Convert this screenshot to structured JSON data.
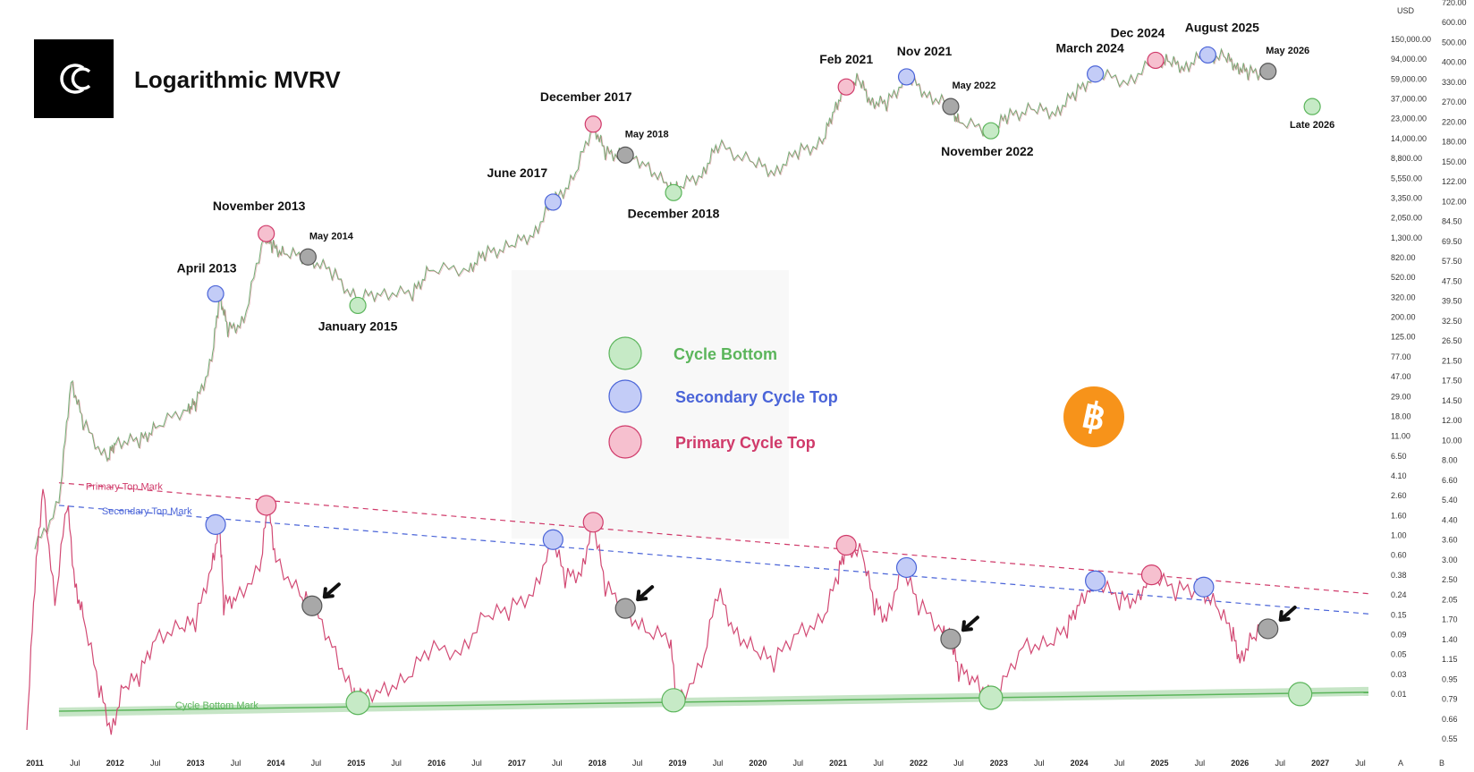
{
  "title": "Logarithmic MVRV",
  "logo_icon": "chartwise-logo-icon",
  "bitcoin_icon": "bitcoin-icon",
  "legend": [
    {
      "label": "Cycle Bottom",
      "color": "#5bb55b",
      "fill": "#c6eac6"
    },
    {
      "label": "Secondary Cycle Top",
      "color": "#4a64d8",
      "fill": "#c3ccf7"
    },
    {
      "label": "Primary Cycle Top",
      "color": "#d03a6a",
      "fill": "#f6c0cf"
    }
  ],
  "chart_data": {
    "type": "line",
    "x_axis": {
      "ticks": [
        "2011",
        "Jul",
        "2012",
        "Jul",
        "2013",
        "Jul",
        "2014",
        "Jul",
        "2015",
        "Jul",
        "2016",
        "Jul",
        "2017",
        "Jul",
        "2018",
        "Jul",
        "2019",
        "Jul",
        "2020",
        "Jul",
        "2021",
        "Jul",
        "2022",
        "Jul",
        "2023",
        "Jul",
        "2024",
        "Jul",
        "2025",
        "Jul",
        "2026",
        "Jul",
        "2027",
        "Jul"
      ],
      "range": [
        2010.9,
        2027.6
      ]
    },
    "price_axis": {
      "unit": "USD",
      "scale": "log",
      "ticks": [
        "150,000.00",
        "94,000.00",
        "59,000.00",
        "37,000.00",
        "23,000.00",
        "14,000.00",
        "8,800.00",
        "5,550.00",
        "3,350.00",
        "2,050.00",
        "1,300.00",
        "820.00",
        "520.00",
        "320.00",
        "200.00",
        "125.00",
        "77.00",
        "47.00",
        "29.00",
        "18.00",
        "11.00",
        "6.50",
        "4.10",
        "2.60",
        "1.60",
        "1.00",
        "0.60",
        "0.38",
        "0.24",
        "0.15",
        "0.09",
        "0.05",
        "0.03",
        "0.01"
      ]
    },
    "mvrv_axis": {
      "scale": "log",
      "ticks": [
        "720.00",
        "600.00",
        "500.00",
        "400.00",
        "330.00",
        "270.00",
        "220.00",
        "180.00",
        "150.00",
        "122.00",
        "102.00",
        "84.50",
        "69.50",
        "57.50",
        "47.50",
        "39.50",
        "32.50",
        "26.50",
        "21.50",
        "17.50",
        "14.50",
        "12.00",
        "10.00",
        "8.00",
        "6.60",
        "5.40",
        "4.40",
        "3.60",
        "3.00",
        "2.50",
        "2.05",
        "1.70",
        "1.40",
        "1.15",
        "0.95",
        "0.79",
        "0.66",
        "0.55"
      ]
    },
    "price_series": [
      [
        2011.0,
        0.3
      ],
      [
        2011.3,
        1.0
      ],
      [
        2011.45,
        25
      ],
      [
        2011.6,
        8
      ],
      [
        2011.9,
        3
      ],
      [
        2012.0,
        5
      ],
      [
        2012.3,
        5
      ],
      [
        2012.5,
        7
      ],
      [
        2012.9,
        12
      ],
      [
        2013.0,
        13
      ],
      [
        2013.2,
        40
      ],
      [
        2013.3,
        230
      ],
      [
        2013.4,
        90
      ],
      [
        2013.6,
        110
      ],
      [
        2013.85,
        1100
      ],
      [
        2013.95,
        800
      ],
      [
        2014.1,
        650
      ],
      [
        2014.4,
        600
      ],
      [
        2014.7,
        400
      ],
      [
        2015.0,
        200
      ],
      [
        2015.3,
        240
      ],
      [
        2015.7,
        230
      ],
      [
        2015.9,
        420
      ],
      [
        2016.4,
        450
      ],
      [
        2016.6,
        650
      ],
      [
        2016.9,
        780
      ],
      [
        2017.2,
        1100
      ],
      [
        2017.45,
        2500
      ],
      [
        2017.7,
        4500
      ],
      [
        2017.95,
        19000
      ],
      [
        2018.1,
        9000
      ],
      [
        2018.3,
        8500
      ],
      [
        2018.6,
        7000
      ],
      [
        2018.9,
        3500
      ],
      [
        2019.0,
        3600
      ],
      [
        2019.3,
        5200
      ],
      [
        2019.5,
        11000
      ],
      [
        2019.9,
        7300
      ],
      [
        2020.2,
        5500
      ],
      [
        2020.5,
        9300
      ],
      [
        2020.8,
        11500
      ],
      [
        2020.95,
        29000
      ],
      [
        2021.1,
        50000
      ],
      [
        2021.25,
        61000
      ],
      [
        2021.4,
        35000
      ],
      [
        2021.6,
        32000
      ],
      [
        2021.85,
        65000
      ],
      [
        2022.1,
        42000
      ],
      [
        2022.4,
        30000
      ],
      [
        2022.5,
        20000
      ],
      [
        2022.9,
        16000
      ],
      [
        2023.1,
        23000
      ],
      [
        2023.4,
        28000
      ],
      [
        2023.7,
        26000
      ],
      [
        2023.95,
        42000
      ],
      [
        2024.2,
        70000
      ],
      [
        2024.6,
        58000
      ],
      [
        2024.95,
        100000
      ],
      [
        2025.1,
        98000
      ],
      [
        2025.3,
        84000
      ],
      [
        2025.55,
        115000
      ],
      [
        2025.8,
        110000
      ],
      [
        2025.95,
        88000
      ],
      [
        2026.1,
        72000
      ],
      [
        2026.35,
        75000
      ]
    ],
    "mvrv_series": [
      [
        2010.9,
        0.6
      ],
      [
        2011.0,
        2.5
      ],
      [
        2011.1,
        6.5
      ],
      [
        2011.25,
        2.0
      ],
      [
        2011.4,
        5.5
      ],
      [
        2011.5,
        2.5
      ],
      [
        2011.6,
        1.8
      ],
      [
        2011.8,
        0.9
      ],
      [
        2011.95,
        0.6
      ],
      [
        2012.1,
        0.9
      ],
      [
        2012.3,
        1.0
      ],
      [
        2012.5,
        1.5
      ],
      [
        2012.8,
        1.6
      ],
      [
        2013.0,
        1.7
      ],
      [
        2013.2,
        3.0
      ],
      [
        2013.3,
        4.4
      ],
      [
        2013.35,
        2.0
      ],
      [
        2013.5,
        2.2
      ],
      [
        2013.8,
        2.8
      ],
      [
        2013.9,
        5.3
      ],
      [
        2014.0,
        3.2
      ],
      [
        2014.3,
        2.2
      ],
      [
        2014.45,
        2.0
      ],
      [
        2014.7,
        1.4
      ],
      [
        2014.95,
        0.85
      ],
      [
        2015.0,
        0.8
      ],
      [
        2015.3,
        0.9
      ],
      [
        2015.6,
        0.95
      ],
      [
        2015.9,
        1.3
      ],
      [
        2016.3,
        1.3
      ],
      [
        2016.6,
        1.8
      ],
      [
        2016.9,
        1.9
      ],
      [
        2017.2,
        2.3
      ],
      [
        2017.45,
        3.8
      ],
      [
        2017.6,
        2.6
      ],
      [
        2017.8,
        2.8
      ],
      [
        2017.95,
        4.5
      ],
      [
        2018.1,
        2.4
      ],
      [
        2018.35,
        1.95
      ],
      [
        2018.6,
        1.55
      ],
      [
        2018.9,
        1.45
      ],
      [
        2019.0,
        0.8
      ],
      [
        2019.3,
        1.1
      ],
      [
        2019.5,
        2.3
      ],
      [
        2019.7,
        1.6
      ],
      [
        2019.95,
        1.3
      ],
      [
        2020.2,
        1.15
      ],
      [
        2020.5,
        1.6
      ],
      [
        2020.8,
        1.7
      ],
      [
        2021.0,
        2.7
      ],
      [
        2021.1,
        3.6
      ],
      [
        2021.3,
        3.3
      ],
      [
        2021.45,
        2.0
      ],
      [
        2021.6,
        1.8
      ],
      [
        2021.8,
        2.9
      ],
      [
        2022.0,
        2.0
      ],
      [
        2022.3,
        1.6
      ],
      [
        2022.4,
        1.45
      ],
      [
        2022.5,
        1.05
      ],
      [
        2022.7,
        1.0
      ],
      [
        2022.9,
        0.82
      ],
      [
        2023.0,
        0.85
      ],
      [
        2023.3,
        1.4
      ],
      [
        2023.6,
        1.35
      ],
      [
        2023.85,
        1.6
      ],
      [
        2024.0,
        2.1
      ],
      [
        2024.2,
        2.55
      ],
      [
        2024.5,
        2.1
      ],
      [
        2024.7,
        2.15
      ],
      [
        2024.9,
        2.7
      ],
      [
        2025.2,
        2.3
      ],
      [
        2025.5,
        2.4
      ],
      [
        2025.7,
        2.0
      ],
      [
        2025.9,
        1.55
      ],
      [
        2026.0,
        1.2
      ],
      [
        2026.15,
        1.45
      ],
      [
        2026.3,
        1.6
      ]
    ],
    "reference_lines": [
      {
        "name": "Primary Top Mark",
        "color": "#d03a6a",
        "style": "dashed",
        "from": [
          2011.3,
          6.6
        ],
        "to": [
          2027.6,
          2.25
        ]
      },
      {
        "name": "Secondary Top Mark",
        "color": "#4a64d8",
        "style": "dashed",
        "from": [
          2011.3,
          5.3
        ],
        "to": [
          2027.6,
          1.85
        ]
      },
      {
        "name": "Cycle Bottom Mark",
        "color": "#5bb55b",
        "style": "band",
        "from": [
          2011.3,
          0.72
        ],
        "to": [
          2027.6,
          0.85
        ]
      }
    ],
    "price_markers": [
      {
        "label": "April 2013",
        "kind": "secondary",
        "x": 2013.25,
        "price": 230
      },
      {
        "label": "November 2013",
        "kind": "primary",
        "x": 2013.88,
        "price": 1100
      },
      {
        "label": "May 2014",
        "kind": "neutral",
        "x": 2014.4,
        "price": 600
      },
      {
        "label": "January 2015",
        "kind": "bottom",
        "x": 2015.02,
        "price": 170
      },
      {
        "label": "June 2017",
        "kind": "secondary",
        "x": 2017.45,
        "price": 2500
      },
      {
        "label": "December 2017",
        "kind": "primary",
        "x": 2017.95,
        "price": 19000
      },
      {
        "label": "May 2018",
        "kind": "neutral",
        "x": 2018.35,
        "price": 8500
      },
      {
        "label": "December 2018",
        "kind": "bottom",
        "x": 2018.95,
        "price": 3200
      },
      {
        "label": "Feb 2021",
        "kind": "primary",
        "x": 2021.1,
        "price": 50000
      },
      {
        "label": "Nov 2021",
        "kind": "secondary",
        "x": 2021.85,
        "price": 65000
      },
      {
        "label": "May 2022",
        "kind": "neutral",
        "x": 2022.4,
        "price": 30000
      },
      {
        "label": "November 2022",
        "kind": "bottom",
        "x": 2022.9,
        "price": 16000
      },
      {
        "label": "March 2024",
        "kind": "secondary",
        "x": 2024.2,
        "price": 70000
      },
      {
        "label": "Dec 2024",
        "kind": "primary",
        "x": 2024.95,
        "price": 100000
      },
      {
        "label": "August 2025",
        "kind": "secondary",
        "x": 2025.6,
        "price": 115000
      },
      {
        "label": "May 2026",
        "kind": "neutral",
        "x": 2026.35,
        "price": 75000
      },
      {
        "label": "Late 2026",
        "kind": "bottom",
        "x": 2026.9,
        "price": 30000
      }
    ],
    "mvrv_markers": [
      {
        "kind": "secondary",
        "x": 2013.25,
        "mvrv": 4.4
      },
      {
        "kind": "primary",
        "x": 2013.88,
        "mvrv": 5.3
      },
      {
        "kind": "neutral",
        "x": 2014.45,
        "mvrv": 2.0,
        "arrow": true
      },
      {
        "kind": "bottom",
        "x": 2015.02,
        "mvrv": 0.78
      },
      {
        "kind": "secondary",
        "x": 2017.45,
        "mvrv": 3.8
      },
      {
        "kind": "primary",
        "x": 2017.95,
        "mvrv": 4.5
      },
      {
        "kind": "neutral",
        "x": 2018.35,
        "mvrv": 1.95,
        "arrow": true
      },
      {
        "kind": "bottom",
        "x": 2018.95,
        "mvrv": 0.8
      },
      {
        "kind": "primary",
        "x": 2021.1,
        "mvrv": 3.6
      },
      {
        "kind": "secondary",
        "x": 2021.85,
        "mvrv": 2.9
      },
      {
        "kind": "neutral",
        "x": 2022.4,
        "mvrv": 1.45,
        "arrow": true
      },
      {
        "kind": "bottom",
        "x": 2022.9,
        "mvrv": 0.82
      },
      {
        "kind": "secondary",
        "x": 2024.2,
        "mvrv": 2.55
      },
      {
        "kind": "primary",
        "x": 2024.9,
        "mvrv": 2.7
      },
      {
        "kind": "secondary",
        "x": 2025.55,
        "mvrv": 2.4
      },
      {
        "kind": "neutral",
        "x": 2026.35,
        "mvrv": 1.6,
        "arrow": true
      },
      {
        "kind": "bottom",
        "x": 2026.75,
        "mvrv": 0.85
      }
    ],
    "kind_colors": {
      "primary": {
        "stroke": "#d03a6a",
        "fill": "#f6c0cf"
      },
      "secondary": {
        "stroke": "#4a64d8",
        "fill": "#c3ccf7"
      },
      "bottom": {
        "stroke": "#5bb55b",
        "fill": "#c6eac6"
      },
      "neutral": {
        "stroke": "#555555",
        "fill": "#a8a8a8"
      }
    },
    "right_axis_footer": [
      "A",
      "B"
    ]
  }
}
